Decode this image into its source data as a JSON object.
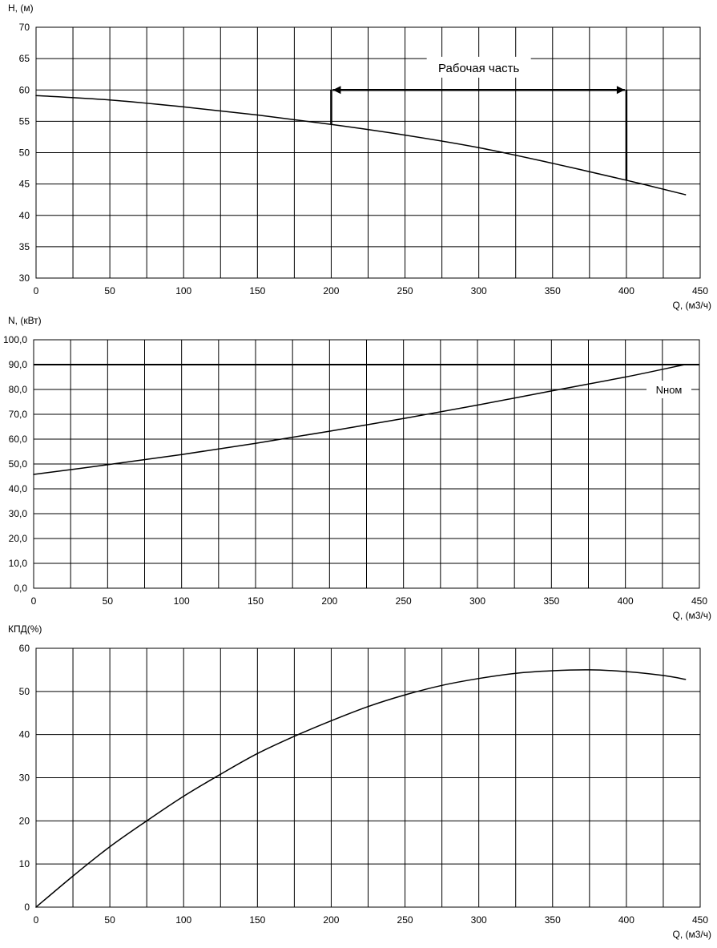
{
  "chart_data": [
    {
      "type": "line",
      "ylabel": "H, (м)",
      "xlabel": "Q, (м3/ч)",
      "xlim": [
        0,
        450
      ],
      "ylim": [
        30,
        70
      ],
      "x_ticks": [
        "0",
        "50",
        "100",
        "150",
        "200",
        "250",
        "300",
        "350",
        "400",
        "450"
      ],
      "y_ticks": [
        "30",
        "35",
        "40",
        "45",
        "50",
        "55",
        "60",
        "65",
        "70"
      ],
      "grid": true,
      "x_minor_step": 25,
      "series": [
        {
          "x": [
            0,
            50,
            100,
            150,
            200,
            250,
            300,
            350,
            400,
            440
          ],
          "values": [
            59.1,
            58.4,
            57.3,
            56.0,
            54.5,
            52.8,
            50.8,
            48.3,
            45.6,
            43.3
          ]
        }
      ],
      "annotations": [
        {
          "text": "Рабочая часть",
          "x_from": 200,
          "x_to": 400,
          "y": 60,
          "label_y": 63.5
        }
      ]
    },
    {
      "type": "line",
      "ylabel": "N, (кВт)",
      "xlabel": "Q, (м3/ч)",
      "xlim": [
        0,
        450
      ],
      "ylim": [
        0,
        100
      ],
      "x_ticks": [
        "0",
        "50",
        "100",
        "150",
        "200",
        "250",
        "300",
        "350",
        "400",
        "450"
      ],
      "y_ticks": [
        "0,0",
        "10,0",
        "20,0",
        "30,0",
        "40,0",
        "50,0",
        "60,0",
        "70,0",
        "80,0",
        "90,0",
        "100,0"
      ],
      "grid": true,
      "x_minor_step": 25,
      "series": [
        {
          "x": [
            0,
            50,
            100,
            150,
            200,
            250,
            300,
            350,
            400,
            440
          ],
          "values": [
            45.8,
            49.7,
            53.8,
            58.3,
            63.2,
            68.3,
            73.7,
            79.4,
            85.0,
            90.0
          ]
        }
      ],
      "reference_lines": [
        {
          "y": 90,
          "label": "Nном",
          "label_y": 80
        }
      ]
    },
    {
      "type": "line",
      "ylabel": "КПД(%)",
      "xlabel": "Q, (м3/ч)",
      "xlim": [
        0,
        450
      ],
      "ylim": [
        0,
        60
      ],
      "x_ticks": [
        "0",
        "50",
        "100",
        "150",
        "200",
        "250",
        "300",
        "350",
        "400",
        "450"
      ],
      "y_ticks": [
        "0",
        "10",
        "20",
        "30",
        "40",
        "50",
        "60"
      ],
      "grid": true,
      "x_minor_step": 25,
      "series": [
        {
          "x": [
            0,
            25,
            50,
            75,
            100,
            125,
            150,
            175,
            200,
            225,
            250,
            275,
            300,
            325,
            350,
            375,
            400,
            425,
            440
          ],
          "values": [
            0,
            7.2,
            14.0,
            20.0,
            25.7,
            30.8,
            35.6,
            39.6,
            43.2,
            46.5,
            49.2,
            51.4,
            53.0,
            54.2,
            54.8,
            55.0,
            54.6,
            53.7,
            52.8
          ]
        }
      ]
    }
  ]
}
